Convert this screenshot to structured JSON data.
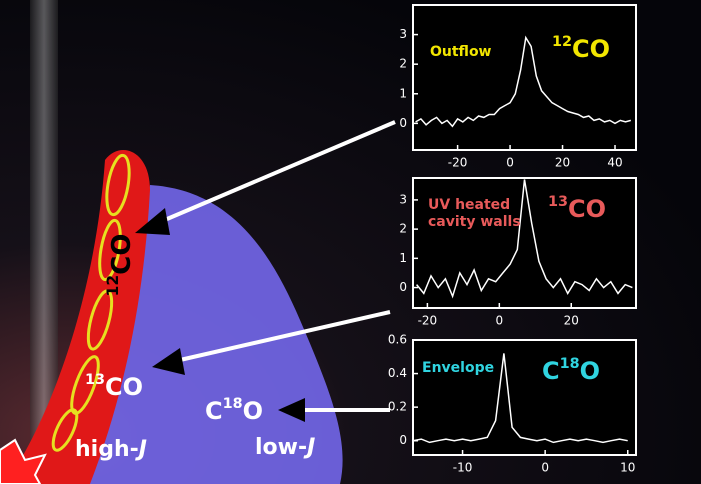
{
  "chart_data": [
    {
      "type": "line",
      "annotation": {
        "label": [
          "Outflow"
        ],
        "label_color": "#f2e600",
        "molecule": [
          {
            "text": "12",
            "sup": true
          },
          {
            "text": "CO"
          }
        ],
        "molecule_color": "#f2e600"
      },
      "x": [
        -36,
        -34,
        -32,
        -30,
        -28,
        -26,
        -24,
        -22,
        -20,
        -18,
        -16,
        -14,
        -12,
        -10,
        -8,
        -6,
        -4,
        -2,
        0,
        2,
        4,
        6,
        8,
        10,
        12,
        14,
        16,
        18,
        20,
        22,
        24,
        26,
        28,
        30,
        32,
        34,
        36,
        38,
        40,
        42,
        44,
        46
      ],
      "series": [
        {
          "color": "#ffffff",
          "values": [
            0.05,
            0.15,
            -0.05,
            0.1,
            0.2,
            0.0,
            0.1,
            -0.1,
            0.15,
            0.05,
            0.2,
            0.1,
            0.25,
            0.2,
            0.3,
            0.3,
            0.5,
            0.6,
            0.7,
            1.0,
            1.8,
            2.9,
            2.6,
            1.6,
            1.1,
            0.9,
            0.7,
            0.6,
            0.5,
            0.4,
            0.35,
            0.3,
            0.2,
            0.25,
            0.1,
            0.15,
            0.05,
            0.1,
            0.0,
            0.1,
            0.05,
            0.1
          ]
        }
      ],
      "xlim": [
        -37,
        48
      ],
      "ylim": [
        -0.9,
        4
      ],
      "xticks": [
        -20,
        0,
        20,
        40
      ],
      "yticks": [
        0,
        1,
        2,
        3
      ]
    },
    {
      "type": "line",
      "annotation": {
        "label": [
          "UV heated",
          "cavity walls"
        ],
        "label_color": "#e85a5a",
        "molecule": [
          {
            "text": "13",
            "sup": true
          },
          {
            "text": "CO"
          }
        ],
        "molecule_color": "#e85a5a"
      },
      "x": [
        -23,
        -21,
        -19,
        -17,
        -15,
        -13,
        -11,
        -9,
        -7,
        -5,
        -3,
        -1,
        1,
        3,
        5,
        7,
        9,
        11,
        13,
        15,
        17,
        19,
        21,
        23,
        25,
        27,
        29,
        31,
        33,
        35,
        37
      ],
      "series": [
        {
          "color": "#ffffff",
          "values": [
            0.1,
            -0.2,
            0.4,
            0.0,
            0.3,
            -0.3,
            0.5,
            0.1,
            0.6,
            -0.1,
            0.3,
            0.2,
            0.5,
            0.8,
            1.3,
            3.7,
            2.2,
            0.9,
            0.3,
            0.0,
            0.3,
            -0.2,
            0.2,
            0.1,
            -0.1,
            0.3,
            0.0,
            0.2,
            -0.2,
            0.1,
            0.0
          ]
        }
      ],
      "xlim": [
        -24,
        38
      ],
      "ylim": [
        -0.7,
        3.75
      ],
      "xticks": [
        -20,
        0,
        20
      ],
      "yticks": [
        0,
        1,
        2,
        3
      ]
    },
    {
      "type": "line",
      "annotation": {
        "label": [
          "Envelope"
        ],
        "label_color": "#30d4e0",
        "molecule": [
          {
            "text": "C"
          },
          {
            "text": "18",
            "sup": true
          },
          {
            "text": "O"
          }
        ],
        "molecule_color": "#30d4e0"
      },
      "x": [
        -16,
        -15,
        -14,
        -13,
        -12,
        -11,
        -10,
        -9,
        -8,
        -7,
        -6,
        -5,
        -4,
        -3,
        -2,
        -1,
        0,
        1,
        2,
        3,
        4,
        5,
        6,
        7,
        8,
        9,
        10
      ],
      "series": [
        {
          "color": "#ffffff",
          "values": [
            0.0,
            0.01,
            -0.01,
            0.0,
            0.01,
            0.0,
            0.01,
            0.0,
            0.01,
            0.02,
            0.12,
            0.52,
            0.08,
            0.02,
            0.01,
            0.0,
            0.01,
            -0.01,
            0.0,
            0.01,
            0.0,
            0.01,
            0.0,
            -0.01,
            0.0,
            0.01,
            0.0
          ]
        }
      ],
      "xlim": [
        -16,
        11
      ],
      "ylim": [
        -0.085,
        0.6
      ],
      "xticks": [
        -10,
        0,
        10
      ],
      "yticks": [
        0,
        0.2,
        0.4,
        0.6
      ]
    }
  ],
  "illustration": {
    "labels": [
      [
        {
          "text": "12",
          "sup": true
        },
        {
          "text": "CO"
        }
      ],
      [
        {
          "text": "13",
          "sup": true
        },
        {
          "text": "CO"
        }
      ],
      [
        {
          "text": "C"
        },
        {
          "text": "18",
          "sup": true
        },
        {
          "text": "O"
        }
      ],
      [
        {
          "text": "high-"
        },
        {
          "text": "J",
          "italic": true
        }
      ],
      [
        {
          "text": "low-"
        },
        {
          "text": "J",
          "italic": true
        }
      ]
    ]
  }
}
